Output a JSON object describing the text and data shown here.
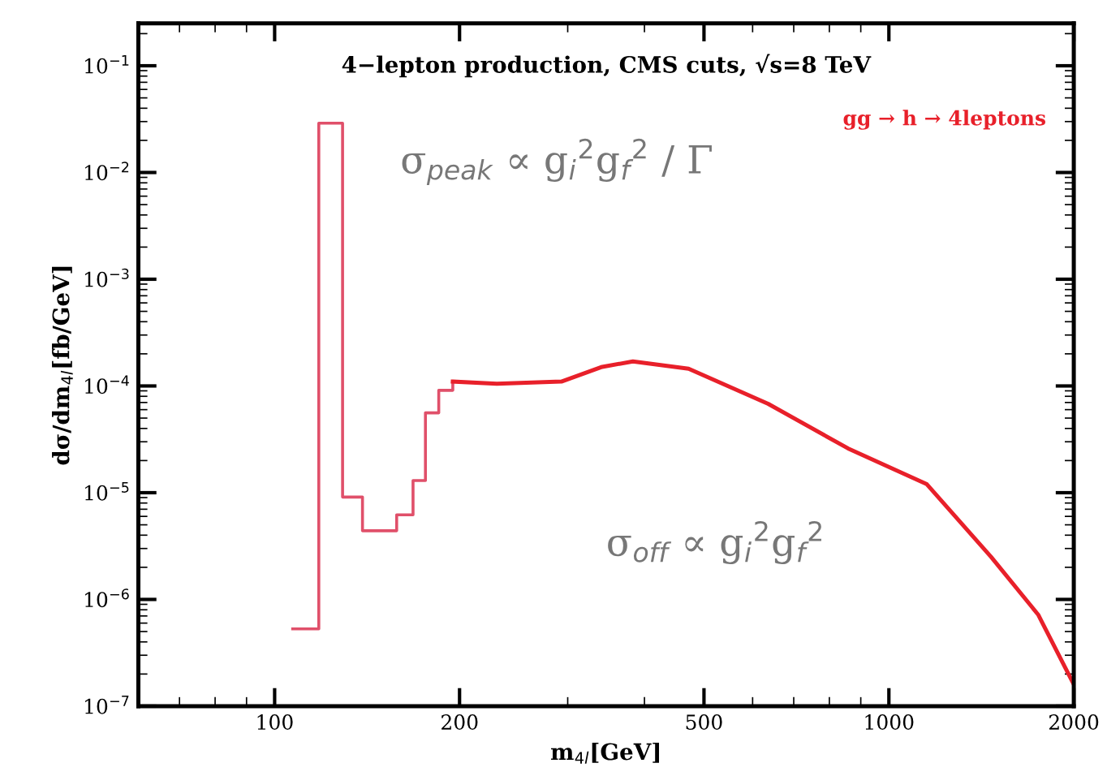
{
  "chart_data": {
    "type": "line",
    "title": "4−lepton production, CMS cuts, √s=8 TeV",
    "xlabel": "m$_{4l}$[GeV]",
    "ylabel": "dσ/dm$_{4l}$[fb/GeV]",
    "log": "xy",
    "grid": false,
    "legend": "top right",
    "xlim": [
      60,
      2000
    ],
    "xticks": [
      100,
      200,
      500,
      1000,
      2000
    ],
    "ylim": [
      1e-07,
      0.25
    ],
    "yticks": [
      {
        "value": 1e-07,
        "label": "10$^{−7}$"
      },
      {
        "value": 1e-06,
        "label": "10$^{−6}$"
      },
      {
        "value": 1e-05,
        "label": "10$^{−5}$"
      },
      {
        "value": 0.0001,
        "label": "10$^{−4}$"
      },
      {
        "value": 0.001,
        "label": "10$^{−3}$"
      },
      {
        "value": 0.01,
        "label": "10$^{−2}$"
      },
      {
        "value": 0.1,
        "label": "10$^{−1}$"
      }
    ],
    "series": [
      {
        "type": "step",
        "color": "#e0506a",
        "x": [
          107,
          118,
          129,
          139,
          158,
          168,
          176,
          185,
          195
        ],
        "values": [
          5.3e-07,
          0.029,
          9.1e-06,
          4.4e-06,
          6.2e-06,
          1.3e-05,
          5.6e-05,
          9.1e-05,
          0.00011
        ]
      },
      {
        "name": "gg → h → 4leptons",
        "color": "#e8202a",
        "x": [
          195,
          230,
          293,
          340,
          383,
          472,
          636,
          858,
          1153,
          1467,
          1750,
          2000
        ],
        "values": [
          0.00011,
          0.000105,
          0.00011,
          0.00015,
          0.00017,
          0.000145,
          6.8e-05,
          2.6e-05,
          1.2e-05,
          2.5e-06,
          7.2e-07,
          1.6e-07
        ]
      }
    ],
    "annotations": [
      "σ$_{peak}$ ∝ g$_{i}$$^{2}$g$_{f}$$^{2}$ / Γ",
      "σ$_{off}$ ∝ g$_{i}$$^{2}$g$_{f}$$^{2}$"
    ]
  }
}
